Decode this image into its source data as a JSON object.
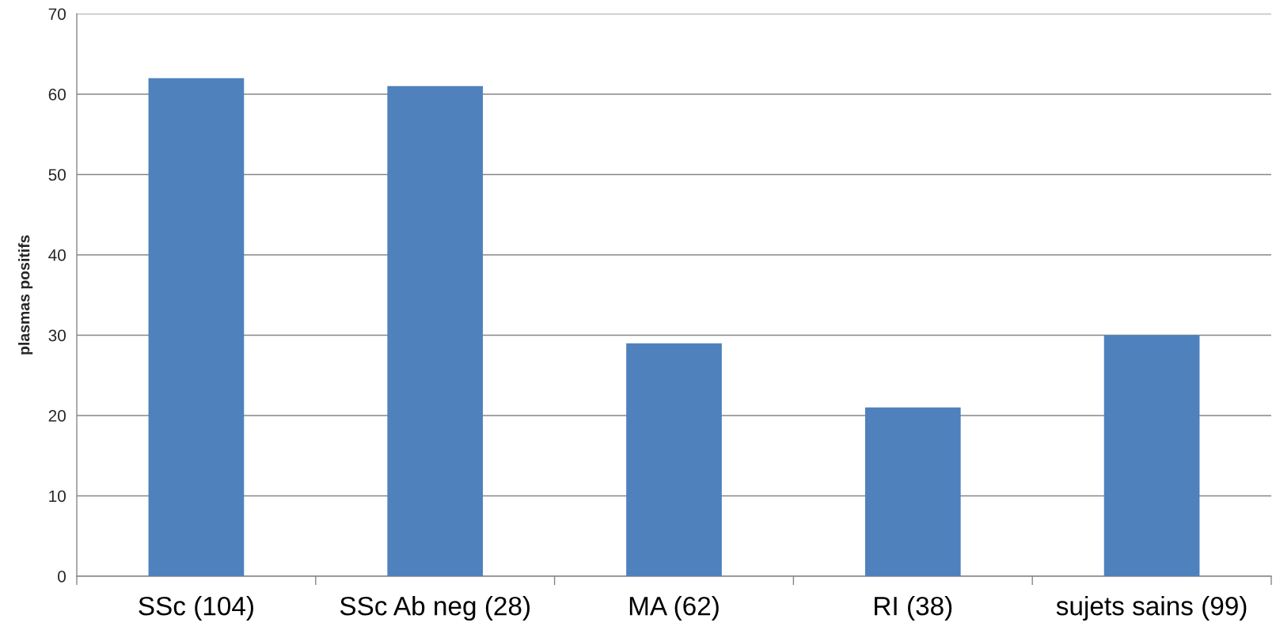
{
  "chart_data": {
    "type": "bar",
    "ylabel": "plasmas positifs",
    "categories": [
      "SSc (104)",
      "SSc Ab neg (28)",
      "MA (62)",
      "RI (38)",
      "sujets sains (99)"
    ],
    "values": [
      62,
      61,
      29,
      21,
      30
    ],
    "color": "#4f81bd",
    "ylim": [
      0,
      70
    ],
    "yticks": [
      0,
      10,
      20,
      30,
      40,
      50,
      60,
      70
    ],
    "grid": "y"
  }
}
